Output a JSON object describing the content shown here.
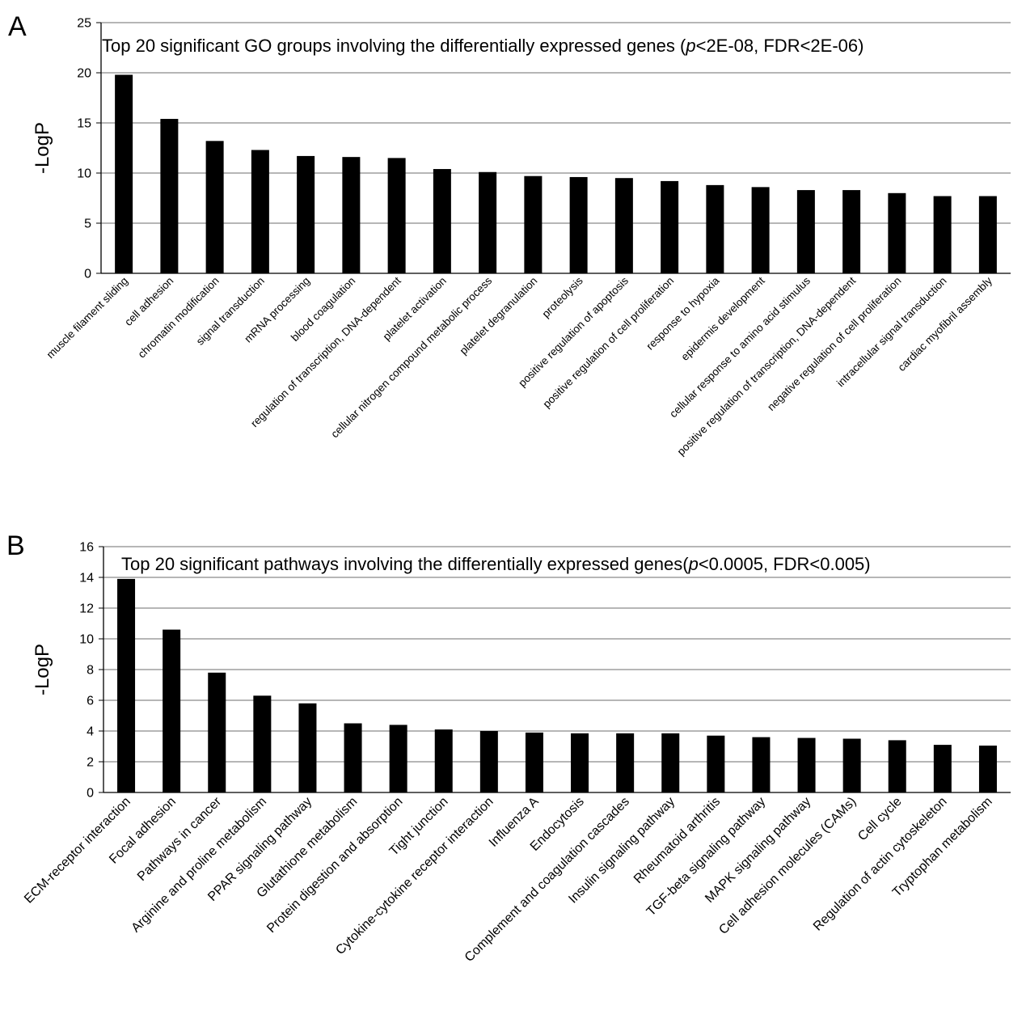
{
  "chart_data": [
    {
      "type": "bar",
      "panel_label": "A",
      "title_parts": [
        "Top 20 significant GO groups involving the differentially expressed genes  (",
        "p",
        "<2E-08, FDR<2E-06)"
      ],
      "ylabel": "-LogP",
      "xlabel": "",
      "ylim": [
        0,
        25
      ],
      "yticks": [
        0,
        5,
        10,
        15,
        20,
        25
      ],
      "grid": true,
      "categories": [
        "muscle filament sliding",
        "cell adhesion",
        "chromatin modification",
        "signal transduction",
        "mRNA processing",
        "blood coagulation",
        "regulation of transcription, DNA-dependent",
        "platelet activation",
        "cellular nitrogen compound metabolic process",
        "platelet degranulation",
        "proteolysis",
        "positive regulation of apoptosis",
        "positive regulation of cell proliferation",
        "response to hypoxia",
        "epidermis development",
        "cellular response to amino acid stimulus",
        "positive regulation of transcription, DNA-dependent",
        "negative regulation of cell proliferation",
        "intracellular signal transduction",
        "cardiac myofibril assembly"
      ],
      "values": [
        19.8,
        15.4,
        13.2,
        12.3,
        11.7,
        11.6,
        11.5,
        10.4,
        10.1,
        9.7,
        9.6,
        9.5,
        9.2,
        8.8,
        8.6,
        8.3,
        8.3,
        8.0,
        7.7,
        7.7
      ],
      "bar_color": "#000000"
    },
    {
      "type": "bar",
      "panel_label": "B",
      "title_parts": [
        "Top 20 significant pathways involving the differentially expressed genes(",
        "p",
        "<0.0005, FDR<0.005)"
      ],
      "ylabel": "-LogP",
      "xlabel": "",
      "ylim": [
        0,
        16
      ],
      "yticks": [
        0,
        2,
        4,
        6,
        8,
        10,
        12,
        14,
        16
      ],
      "grid": true,
      "categories": [
        "ECM-receptor interaction",
        "Focal adhesion",
        "Pathways in cancer",
        "Arginine and proline metabolism",
        "PPAR signaling pathway",
        "Glutathione metabolism",
        "Protein digestion and absorption",
        "Tight junction",
        "Cytokine-cytokine receptor interaction",
        "Influenza A",
        "Endocytosis",
        "Complement and coagulation cascades",
        "Insulin signaling pathway",
        "Rheumatoid arthritis",
        "TGF-beta signaling pathway",
        "MAPK signaling pathway",
        "Cell adhesion molecules (CAMs)",
        "Cell cycle",
        "Regulation of actin cytoskeleton",
        "Tryptophan metabolism"
      ],
      "values": [
        13.9,
        10.6,
        7.8,
        6.3,
        5.8,
        4.5,
        4.4,
        4.1,
        4.0,
        3.9,
        3.85,
        3.85,
        3.85,
        3.7,
        3.6,
        3.55,
        3.5,
        3.4,
        3.1,
        3.05
      ],
      "bar_color": "#000000"
    }
  ]
}
